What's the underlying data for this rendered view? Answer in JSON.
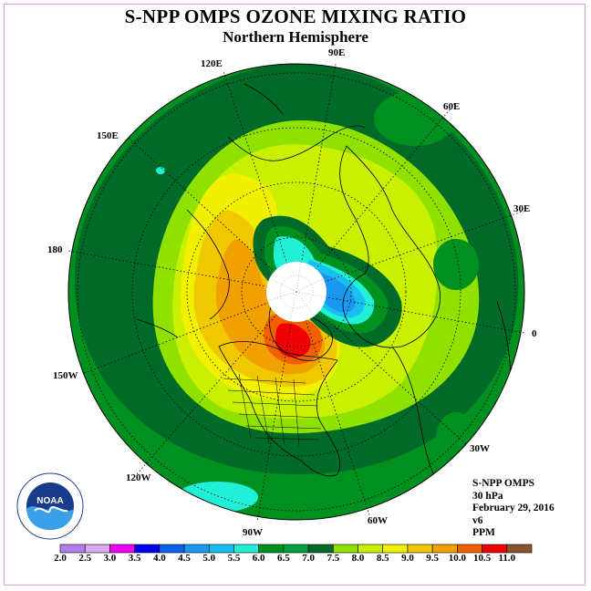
{
  "title": "S-NPP OMPS OZONE MIXING RATIO",
  "subtitle": "Northern Hemisphere",
  "longitude_labels": [
    "90E",
    "60E",
    "30E",
    "0",
    "30W",
    "60W",
    "90W",
    "120W",
    "150W",
    "180",
    "150E",
    "120E"
  ],
  "info": {
    "instrument": "S-NPP OMPS",
    "pressure": "30 hPa",
    "date": "February 29, 2016",
    "version": "v6",
    "units": "PPM"
  },
  "colorbar": {
    "ticks": [
      "2.0",
      "2.5",
      "3.0",
      "3.5",
      "4.0",
      "4.5",
      "5.0",
      "5.5",
      "6.0",
      "6.5",
      "7.0",
      "7.5",
      "8.0",
      "8.5",
      "9.0",
      "9.5",
      "10.0",
      "10.5",
      "11.0"
    ],
    "colors": [
      "#b07ef0",
      "#d8a8f0",
      "#f000f0",
      "#0000f0",
      "#1060f0",
      "#1a98f0",
      "#18c0f0",
      "#20f0d8",
      "#009020",
      "#00a040",
      "#006a28",
      "#90e000",
      "#c8f000",
      "#f0f000",
      "#f0c800",
      "#f0a000",
      "#f06000",
      "#f00000",
      "#8a5030"
    ]
  },
  "logo_text": "NOAA"
}
